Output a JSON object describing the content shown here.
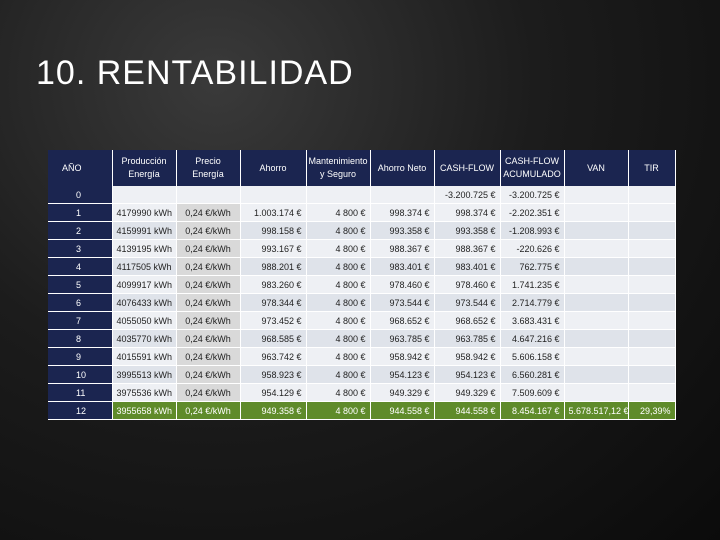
{
  "slide": {
    "title": "10. RENTABILIDAD"
  },
  "table": {
    "headers": [
      "AÑO",
      "Producción Energía",
      "Precio Energía",
      "Ahorro",
      "Mantenimiento y Seguro",
      "Ahorro Neto",
      "CASH-FLOW",
      "CASH-FLOW ACUMULADO",
      "VAN",
      "TIR"
    ],
    "rows": [
      [
        "0",
        "",
        "",
        "",
        "",
        "",
        "-3.200.725 €",
        "-3.200.725 €",
        "",
        ""
      ],
      [
        "1",
        "4179990 kWh",
        "0,24 €/kWh",
        "1.003.174 €",
        "4 800 €",
        "998.374 €",
        "998.374 €",
        "-2.202.351 €",
        "",
        ""
      ],
      [
        "2",
        "4159991 kWh",
        "0,24 €/kWh",
        "998.158 €",
        "4 800 €",
        "993.358 €",
        "993.358 €",
        "-1.208.993 €",
        "",
        ""
      ],
      [
        "3",
        "4139195 kWh",
        "0,24 €/kWh",
        "993.167 €",
        "4 800 €",
        "988.367 €",
        "988.367 €",
        "-220.626 €",
        "",
        ""
      ],
      [
        "4",
        "4117505 kWh",
        "0,24 €/kWh",
        "988.201 €",
        "4 800 €",
        "983.401 €",
        "983.401 €",
        "762.775 €",
        "",
        ""
      ],
      [
        "5",
        "4099917 kWh",
        "0,24 €/kWh",
        "983.260 €",
        "4 800 €",
        "978.460 €",
        "978.460 €",
        "1.741.235 €",
        "",
        ""
      ],
      [
        "6",
        "4076433 kWh",
        "0,24 €/kWh",
        "978.344 €",
        "4 800 €",
        "973.544 €",
        "973.544 €",
        "2.714.779 €",
        "",
        ""
      ],
      [
        "7",
        "4055050 kWh",
        "0,24 €/kWh",
        "973.452 €",
        "4 800 €",
        "968.652 €",
        "968.652 €",
        "3.683.431 €",
        "",
        ""
      ],
      [
        "8",
        "4035770 kWh",
        "0,24 €/kWh",
        "968.585 €",
        "4 800 €",
        "963.785 €",
        "963.785 €",
        "4.647.216 €",
        "",
        ""
      ],
      [
        "9",
        "4015591 kWh",
        "0,24 €/kWh",
        "963.742 €",
        "4 800 €",
        "958.942 €",
        "958.942 €",
        "5.606.158 €",
        "",
        ""
      ],
      [
        "10",
        "3995513 kWh",
        "0,24 €/kWh",
        "958.923 €",
        "4 800 €",
        "954.123 €",
        "954.123 €",
        "6.560.281 €",
        "",
        ""
      ],
      [
        "11",
        "3975536 kWh",
        "0,24 €/kWh",
        "954.129 €",
        "4 800 €",
        "949.329 €",
        "949.329 €",
        "7.509.609 €",
        "",
        ""
      ],
      [
        "12",
        "3955658 kWh",
        "0,24 €/kWh",
        "949.358 €",
        "4 800 €",
        "944.558 €",
        "944.558 €",
        "8.454.167 €",
        "5.678.517,12 €",
        "29,39%"
      ]
    ]
  },
  "colors": {
    "header": "#1b2550",
    "highlight_row": "#5f8b2a"
  }
}
